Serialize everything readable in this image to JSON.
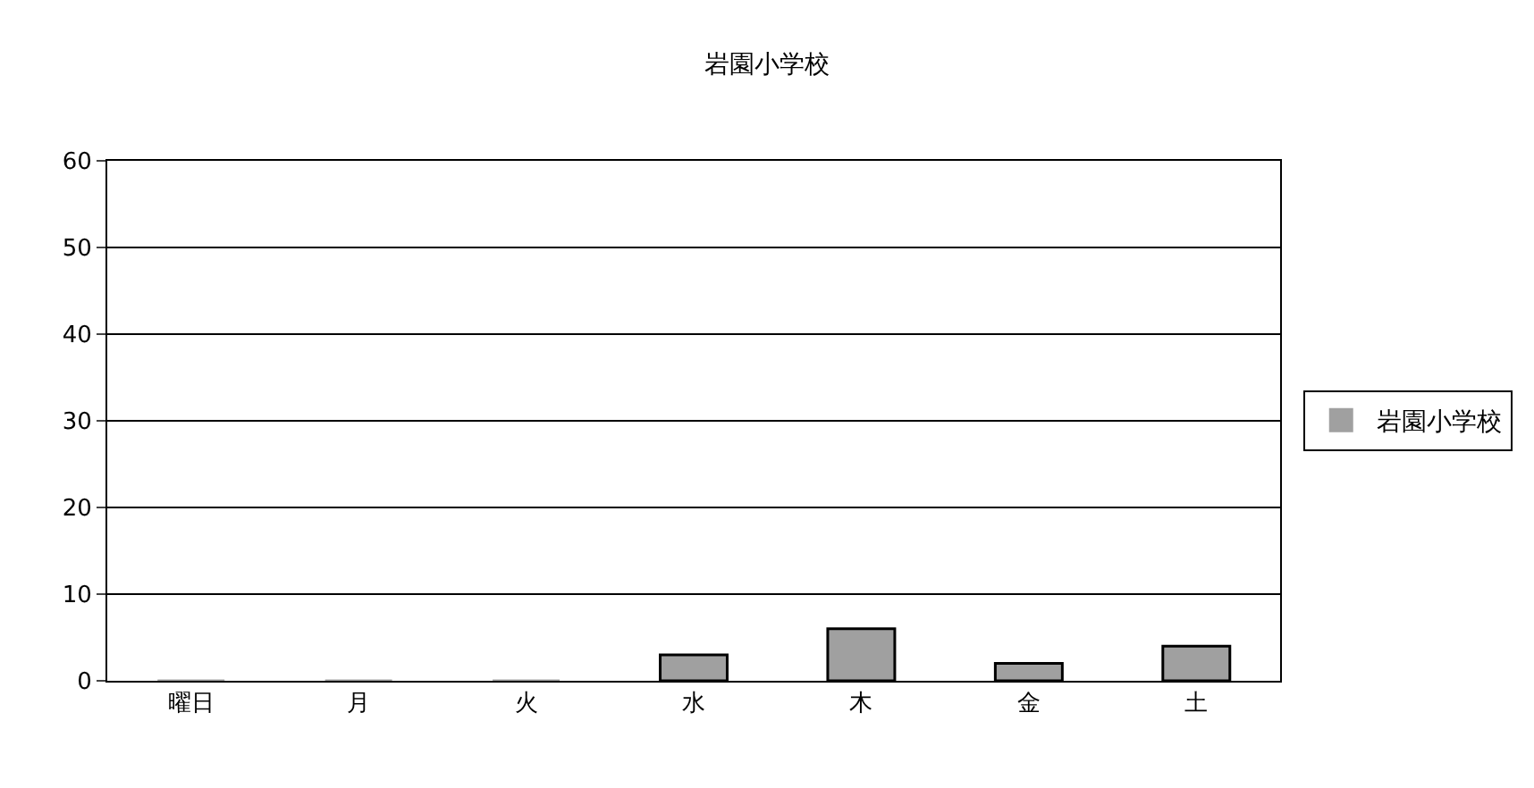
{
  "chart_data": {
    "type": "bar",
    "title": "岩園小学校",
    "categories": [
      "曜日",
      "月",
      "火",
      "水",
      "木",
      "金",
      "土"
    ],
    "series": [
      {
        "name": "岩園小学校",
        "color": "#a0a0a0",
        "values": [
          0,
          0,
          0,
          3,
          6,
          2,
          4
        ]
      }
    ],
    "ylim": [
      0,
      60
    ],
    "yticks": [
      0,
      10,
      20,
      30,
      40,
      50,
      60
    ],
    "grid": "y",
    "legend": "right"
  }
}
